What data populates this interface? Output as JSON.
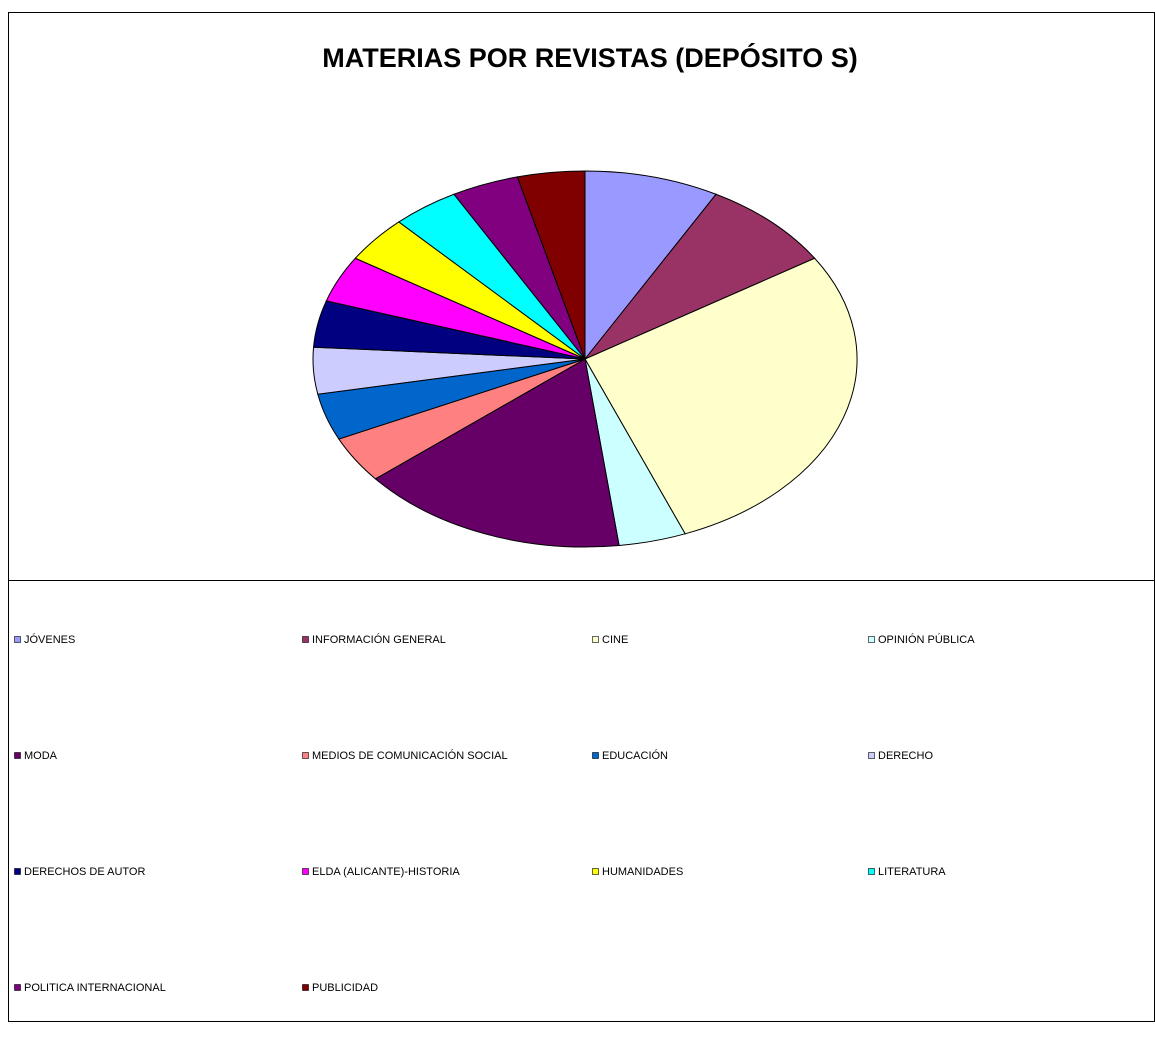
{
  "chart_data": {
    "type": "pie",
    "title": "MATERIAS POR REVISTAS (DEPÓSITO S)",
    "categories": [
      "JÓVENES",
      "INFORMACIÓN GENERAL",
      "CINE",
      "OPINIÓN PÚBLICA",
      "MODA",
      "MEDIOS DE COMUNICACIÓN SOCIAL",
      "EDUCACIÓN",
      "DERECHO",
      "DERECHOS DE AUTOR",
      "ELDA (ALICANTE)-HISTORIA",
      "HUMANIDADES",
      "LITERATURA",
      "POLITICA INTERNACIONAL",
      "PUBLICIDAD"
    ],
    "values": [
      2,
      2,
      7,
      1,
      4,
      1,
      1,
      1,
      1,
      1,
      1,
      1,
      1,
      1
    ],
    "colors": [
      "#9999ff",
      "#993366",
      "#ffffcc",
      "#ccffff",
      "#660066",
      "#ff8080",
      "#0066cc",
      "#ccccff",
      "#000080",
      "#ff00ff",
      "#ffff00",
      "#00ffff",
      "#800080",
      "#800000"
    ],
    "legend": "bottom"
  }
}
